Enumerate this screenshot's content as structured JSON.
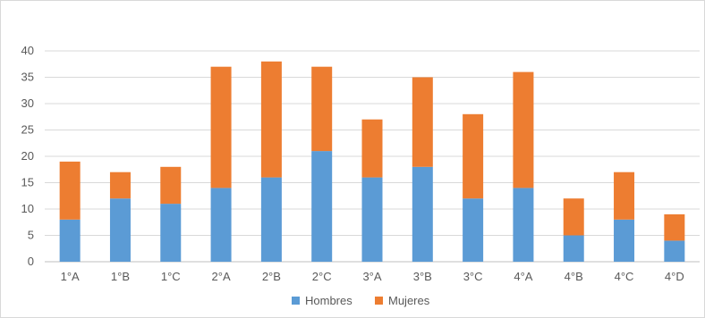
{
  "chart_data": {
    "type": "bar",
    "stacked": true,
    "categories": [
      "1°A",
      "1°B",
      "1°C",
      "2°A",
      "2°B",
      "2°C",
      "3°A",
      "3°B",
      "3°C",
      "4°A",
      "4°B",
      "4°C",
      "4°D"
    ],
    "series": [
      {
        "name": "Hombres",
        "color": "#5b9bd5",
        "values": [
          8,
          12,
          11,
          14,
          16,
          21,
          16,
          18,
          12,
          14,
          5,
          8,
          4
        ]
      },
      {
        "name": "Mujeres",
        "color": "#ed7d31",
        "values": [
          11,
          5,
          7,
          23,
          22,
          16,
          11,
          17,
          16,
          22,
          7,
          9,
          5
        ]
      }
    ],
    "ylim": [
      0,
      40
    ],
    "yticks": [
      0,
      5,
      10,
      15,
      20,
      25,
      30,
      35,
      40
    ],
    "grid": true,
    "legend_position": "bottom",
    "title": "",
    "xlabel": "",
    "ylabel": ""
  }
}
